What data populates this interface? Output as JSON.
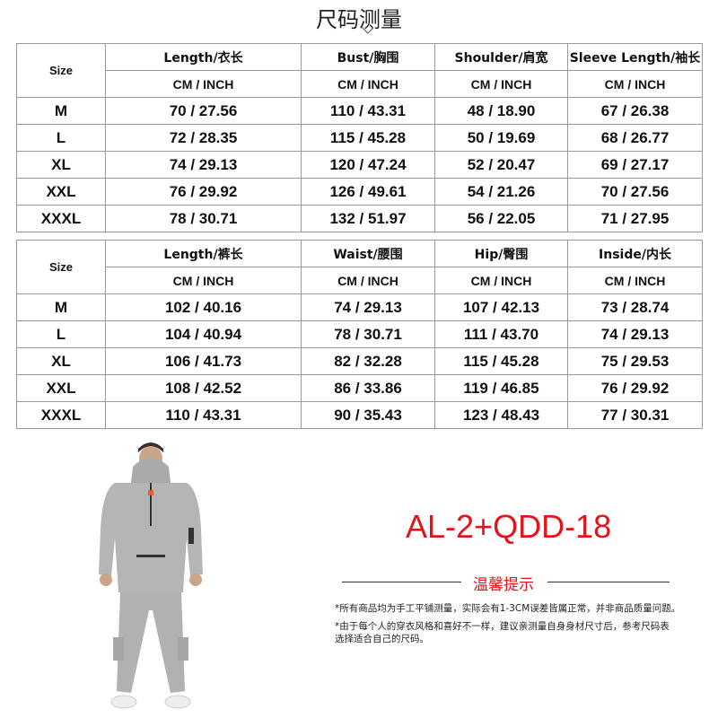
{
  "title": "尺码测量",
  "top_table": {
    "size_label": "Size",
    "headers": [
      "Length/衣长",
      "Bust/胸围",
      "Shoulder/肩宽",
      "Sleeve Length/袖长"
    ],
    "unit": "CM  /  INCH",
    "rows": [
      [
        "M",
        "70 / 27.56",
        "110 / 43.31",
        "48 / 18.90",
        "67 / 26.38"
      ],
      [
        "L",
        "72 / 28.35",
        "115 / 45.28",
        "50 / 19.69",
        "68 / 26.77"
      ],
      [
        "XL",
        "74 / 29.13",
        "120 / 47.24",
        "52 / 20.47",
        "69 / 27.17"
      ],
      [
        "XXL",
        "76 / 29.92",
        "126 / 49.61",
        "54 / 21.26",
        "70 / 27.56"
      ],
      [
        "XXXL",
        "78 / 30.71",
        "132 / 51.97",
        "56 / 22.05",
        "71 / 27.95"
      ]
    ]
  },
  "bottom_table": {
    "size_label": "Size",
    "headers": [
      "Length/裤长",
      "Waist/腰围",
      "Hip/臀围",
      "Inside/内长"
    ],
    "unit": "CM  /  INCH",
    "rows": [
      [
        "M",
        "102 / 40.16",
        "74 / 29.13",
        "107 / 42.13",
        "73 / 28.74"
      ],
      [
        "L",
        "104 / 40.94",
        "78 / 30.71",
        "111 / 43.70",
        "74 / 29.13"
      ],
      [
        "XL",
        "106 / 41.73",
        "82 / 32.28",
        "115 / 45.28",
        "75 / 29.53"
      ],
      [
        "XXL",
        "108 / 42.52",
        "86 / 33.86",
        "119 / 46.85",
        "76 / 29.92"
      ],
      [
        "XXXL",
        "110 / 43.31",
        "90 / 35.43",
        "123 / 48.43",
        "77 / 30.31"
      ]
    ]
  },
  "product_code": "AL-2+QDD-18",
  "tips": {
    "title": "温馨提示",
    "notes": [
      "*所有商品均为手工平铺测量，实际会有1-3CM误差皆属正常，并非商品质量问题。",
      "*由于每个人的穿衣风格和喜好不一样，建议亲测量自身身材尺寸后，参考尺码表\n 选择适合自己的尺码。"
    ]
  },
  "colors": {
    "accent": "#e0141a",
    "border": "#999999",
    "garment": "#b4b6b5"
  }
}
